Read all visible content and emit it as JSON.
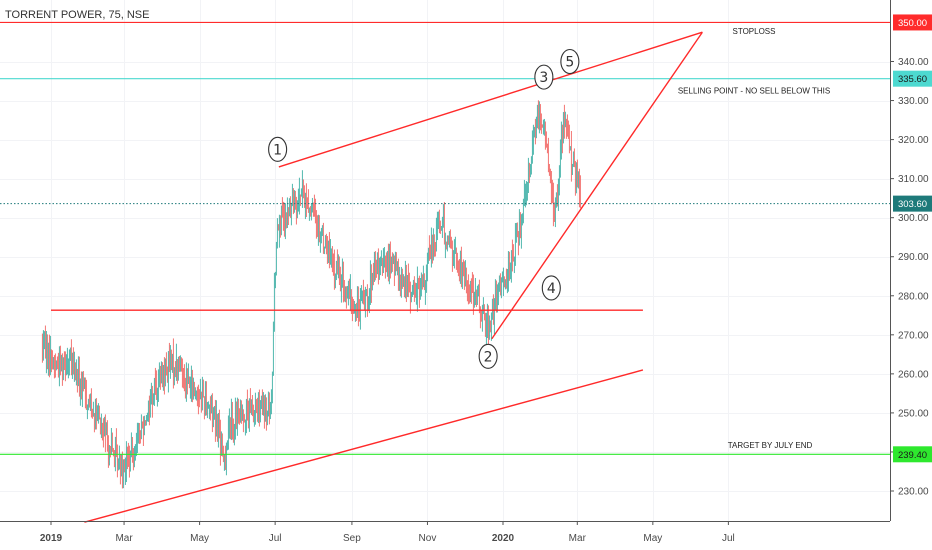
{
  "chart_data": {
    "type": "candlestick",
    "title": "TORRENT POWER, 75, NSE",
    "x_ticks": [
      "2019",
      "Mar",
      "May",
      "Jul",
      "Sep",
      "Nov",
      "2020",
      "Mar",
      "May",
      "Jul"
    ],
    "y_ticks": [
      "230.00",
      "240.00",
      "250.00",
      "260.00",
      "270.00",
      "280.00",
      "290.00",
      "300.00",
      "310.00",
      "320.00",
      "330.00",
      "340.00"
    ],
    "ylim": [
      221,
      355
    ],
    "price_tags": [
      {
        "label": "350.00",
        "value": 350.0,
        "color": "#ff2b2b"
      },
      {
        "label": "335.60",
        "value": 335.6,
        "color": "#4dd9d0"
      },
      {
        "label": "303.60",
        "value": 303.6,
        "color": "#1e7a7a"
      },
      {
        "label": "239.40",
        "value": 239.4,
        "color": "#2ee82e"
      }
    ],
    "annotations": [
      {
        "text": "STOPLOSS",
        "price": 347.8
      },
      {
        "text": "SELLING POINT - NO SELL BELOW THIS",
        "price": 332.6
      },
      {
        "text": "TARGET BY JULY END",
        "price": 241.8
      }
    ],
    "wave_labels": [
      {
        "text": "1",
        "date": "2019-07-03",
        "price": 317.5
      },
      {
        "text": "2",
        "date": "2019-12-20",
        "price": 264.5
      },
      {
        "text": "3",
        "date": "2020-02-03",
        "price": 336.0
      },
      {
        "text": "4",
        "date": "2020-02-09",
        "price": 282.0
      },
      {
        "text": "5",
        "date": "2020-02-24",
        "price": 340.0
      }
    ],
    "trend_lines": [
      {
        "name": "upper-wedge",
        "from": {
          "date": "2019-07-04",
          "price": 313.0
        },
        "to": {
          "date": "2020-06-10",
          "price": 347.5
        }
      },
      {
        "name": "lower-wedge",
        "from": {
          "date": "2019-12-23",
          "price": 269.0
        },
        "to": {
          "date": "2020-06-10",
          "price": 347.5
        }
      },
      {
        "name": "support",
        "from": {
          "date": "2019-01-01",
          "price": 276.3
        },
        "to": {
          "date": "2020-04-23",
          "price": 276.3
        }
      },
      {
        "name": "lower-channel",
        "from": {
          "date": "2019-01-28",
          "price": 222.0
        },
        "to": {
          "date": "2020-04-23",
          "price": 261.0
        }
      }
    ],
    "horizontal_lines": [
      {
        "price": 350.0,
        "color": "#ff2b2b"
      },
      {
        "price": 335.6,
        "color": "#4dd9d0"
      },
      {
        "price": 303.6,
        "color": "#1e7a7a",
        "dotted": true
      },
      {
        "price": 239.4,
        "color": "#2ee82e"
      }
    ],
    "price_path": [
      [
        "2018-12-25",
        268
      ],
      [
        "2019-01-05",
        262
      ],
      [
        "2019-01-15",
        264
      ],
      [
        "2019-01-25",
        257
      ],
      [
        "2019-02-05",
        250
      ],
      [
        "2019-02-15",
        243
      ],
      [
        "2019-02-25",
        237
      ],
      [
        "2019-03-05",
        238
      ],
      [
        "2019-03-15",
        246
      ],
      [
        "2019-03-25",
        256
      ],
      [
        "2019-04-05",
        262
      ],
      [
        "2019-04-15",
        262
      ],
      [
        "2019-04-25",
        256
      ],
      [
        "2019-05-05",
        254
      ],
      [
        "2019-05-15",
        248
      ],
      [
        "2019-05-20",
        237
      ],
      [
        "2019-05-25",
        247
      ],
      [
        "2019-06-05",
        250
      ],
      [
        "2019-06-15",
        251
      ],
      [
        "2019-06-25",
        250
      ],
      [
        "2019-06-28",
        252
      ],
      [
        "2019-06-30",
        280
      ],
      [
        "2019-07-03",
        300
      ],
      [
        "2019-07-08",
        298
      ],
      [
        "2019-07-15",
        304
      ],
      [
        "2019-07-22",
        306
      ],
      [
        "2019-07-30",
        302
      ],
      [
        "2019-08-08",
        295
      ],
      [
        "2019-08-18",
        287
      ],
      [
        "2019-08-28",
        281
      ],
      [
        "2019-09-04",
        276
      ],
      [
        "2019-09-12",
        280
      ],
      [
        "2019-09-22",
        287
      ],
      [
        "2019-10-01",
        289
      ],
      [
        "2019-10-10",
        285
      ],
      [
        "2019-10-20",
        281
      ],
      [
        "2019-10-28",
        282
      ],
      [
        "2019-11-04",
        292
      ],
      [
        "2019-11-10",
        300
      ],
      [
        "2019-11-18",
        294
      ],
      [
        "2019-11-28",
        286
      ],
      [
        "2019-12-06",
        282
      ],
      [
        "2019-12-15",
        276
      ],
      [
        "2019-12-20",
        272
      ],
      [
        "2019-12-24",
        276
      ],
      [
        "2020-01-01",
        284
      ],
      [
        "2020-01-08",
        289
      ],
      [
        "2020-01-15",
        298
      ],
      [
        "2020-01-22",
        314
      ],
      [
        "2020-01-30",
        328
      ],
      [
        "2020-02-04",
        322
      ],
      [
        "2020-02-08",
        310
      ],
      [
        "2020-02-11",
        300
      ],
      [
        "2020-02-14",
        306
      ],
      [
        "2020-02-17",
        320
      ],
      [
        "2020-02-21",
        326
      ],
      [
        "2020-02-25",
        316
      ],
      [
        "2020-03-01",
        308
      ],
      [
        "2020-03-04",
        303.6
      ]
    ]
  }
}
